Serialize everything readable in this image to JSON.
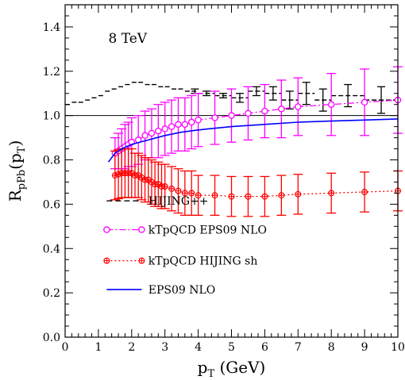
{
  "chart_data": {
    "type": "line",
    "annotation": "8 TeV",
    "xlabel": {
      "base": "p",
      "sub": "T",
      "rest": " (GeV)"
    },
    "ylabel": {
      "base": "R",
      "sub": "pPb",
      "rest": "(p",
      "sub2": "T",
      "close": ")"
    },
    "xlim": [
      0,
      10
    ],
    "ylim": [
      0,
      1.5
    ],
    "xticks": [
      0,
      1,
      2,
      3,
      4,
      5,
      6,
      7,
      8,
      9,
      10
    ],
    "yticks": [
      0.0,
      0.2,
      0.4,
      0.6,
      0.8,
      1.0,
      1.2,
      1.4
    ],
    "ytick_labels": [
      "0.0",
      "0.2",
      "0.4",
      "0.6",
      "0.8",
      "1.0",
      "1.2",
      "1.4"
    ],
    "reference_line": 1.0,
    "grid": false,
    "legend_position": "bottom-left",
    "colors": {
      "hijing": "#000000",
      "eps09": "#ff00ff",
      "hijing_sh": "#ff0000",
      "nlo": "#0000ff"
    },
    "series": [
      {
        "name": "HIJING++",
        "style": "dashed-steps-with-errors",
        "color": "#000000",
        "x": [
          0.1,
          0.3,
          0.5,
          0.7,
          0.9,
          1.1,
          1.3,
          1.5,
          1.7,
          1.9,
          2.1,
          2.3,
          2.5,
          2.7,
          2.9,
          3.1,
          3.3,
          3.5,
          3.7,
          3.9,
          4.25,
          4.75,
          5.25,
          5.75,
          6.25,
          6.75,
          7.25,
          7.75,
          8.5,
          9.5
        ],
        "y": [
          1.05,
          1.06,
          1.06,
          1.07,
          1.08,
          1.09,
          1.11,
          1.12,
          1.13,
          1.14,
          1.15,
          1.15,
          1.14,
          1.14,
          1.13,
          1.13,
          1.12,
          1.12,
          1.11,
          1.11,
          1.1,
          1.09,
          1.08,
          1.11,
          1.1,
          1.07,
          1.1,
          1.07,
          1.09,
          1.07
        ],
        "err": [
          0,
          0,
          0,
          0,
          0,
          0,
          0,
          0,
          0,
          0,
          0,
          0,
          0,
          0,
          0,
          0,
          0,
          0,
          0,
          0.01,
          0.01,
          0.01,
          0.02,
          0.02,
          0.03,
          0.04,
          0.05,
          0.05,
          0.05,
          0.06
        ]
      },
      {
        "name": "kTpQCD EPS09 NLO",
        "style": "dash-dot-circles",
        "color": "#ff00ff",
        "x": [
          1.5,
          1.6,
          1.7,
          1.8,
          1.9,
          2.0,
          2.2,
          2.4,
          2.6,
          2.8,
          3.0,
          3.2,
          3.4,
          3.6,
          3.8,
          4.0,
          4.5,
          5.0,
          5.5,
          6.0,
          6.5,
          7.0,
          8.0,
          9.0,
          10.0
        ],
        "y": [
          0.83,
          0.84,
          0.85,
          0.86,
          0.87,
          0.88,
          0.89,
          0.91,
          0.92,
          0.93,
          0.94,
          0.95,
          0.96,
          0.96,
          0.97,
          0.98,
          0.99,
          1.0,
          1.01,
          1.02,
          1.03,
          1.04,
          1.05,
          1.06,
          1.07
        ],
        "err": [
          0.07,
          0.08,
          0.09,
          0.1,
          0.1,
          0.11,
          0.11,
          0.11,
          0.11,
          0.12,
          0.12,
          0.12,
          0.12,
          0.12,
          0.12,
          0.12,
          0.12,
          0.12,
          0.12,
          0.12,
          0.13,
          0.13,
          0.14,
          0.15,
          0.15
        ]
      },
      {
        "name": "kTpQCD HIJING sh",
        "style": "dotted-crossed-circles",
        "color": "#ff0000",
        "x": [
          1.5,
          1.6,
          1.7,
          1.8,
          1.9,
          2.0,
          2.1,
          2.2,
          2.3,
          2.4,
          2.5,
          2.6,
          2.7,
          2.8,
          2.9,
          3.0,
          3.2,
          3.4,
          3.6,
          3.8,
          4.0,
          4.5,
          5.0,
          5.5,
          6.0,
          6.5,
          7.0,
          8.0,
          9.0,
          10.0
        ],
        "y": [
          0.73,
          0.735,
          0.74,
          0.74,
          0.74,
          0.74,
          0.73,
          0.73,
          0.72,
          0.71,
          0.71,
          0.7,
          0.69,
          0.69,
          0.68,
          0.68,
          0.67,
          0.66,
          0.65,
          0.65,
          0.64,
          0.64,
          0.635,
          0.635,
          0.635,
          0.64,
          0.645,
          0.65,
          0.655,
          0.66
        ],
        "err": [
          0.11,
          0.11,
          0.11,
          0.11,
          0.11,
          0.11,
          0.1,
          0.1,
          0.1,
          0.1,
          0.1,
          0.1,
          0.1,
          0.1,
          0.1,
          0.1,
          0.1,
          0.1,
          0.1,
          0.1,
          0.09,
          0.09,
          0.09,
          0.09,
          0.09,
          0.09,
          0.09,
          0.09,
          0.09,
          0.09
        ]
      },
      {
        "name": "EPS09 NLO",
        "style": "solid",
        "color": "#0000ff",
        "x": [
          1.3,
          1.5,
          1.7,
          2.0,
          2.5,
          3.0,
          3.5,
          4.0,
          5.0,
          6.0,
          7.0,
          8.0,
          9.0,
          10.0
        ],
        "y": [
          0.79,
          0.83,
          0.85,
          0.87,
          0.89,
          0.91,
          0.925,
          0.935,
          0.95,
          0.96,
          0.97,
          0.975,
          0.98,
          0.985
        ]
      }
    ]
  }
}
